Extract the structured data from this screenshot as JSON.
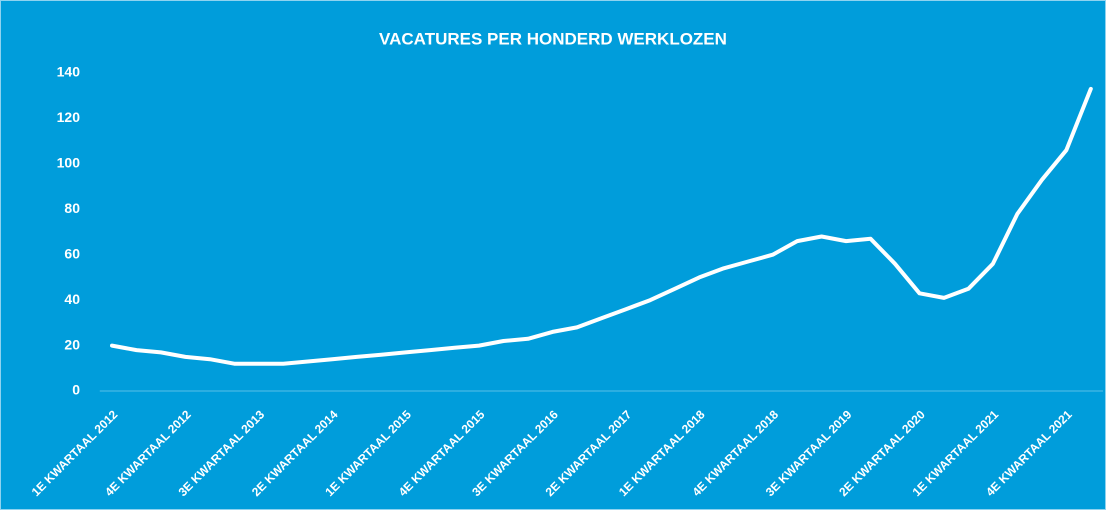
{
  "chart_data": {
    "type": "line",
    "title": "VACATURES PER HONDERD WERKLOZEN",
    "categories": [
      "1E KWARTAAL 2012",
      null,
      null,
      "4E KWARTAAL 2012",
      null,
      null,
      "3E KWARTAAL 2013",
      null,
      null,
      "2E KWARTAAL 2014",
      null,
      null,
      "1E KWARTAAL 2015",
      null,
      null,
      "4E KWARTAAL 2015",
      null,
      null,
      "3E KWARTAAL 2016",
      null,
      null,
      "2E KWARTAAL 2017",
      null,
      null,
      "1E KWARTAAL 2018",
      null,
      null,
      "4E KWARTAAL 2018",
      null,
      null,
      "3E KWARTAAL 2019",
      null,
      null,
      "2E KWARTAAL 2020",
      null,
      null,
      "1E KWARTAAL 2021",
      null,
      null,
      "4E KWARTAAL 2021",
      null
    ],
    "values": [
      20,
      18,
      17,
      15,
      14,
      12,
      12,
      12,
      13,
      14,
      15,
      16,
      17,
      18,
      19,
      20,
      22,
      23,
      26,
      28,
      32,
      36,
      40,
      45,
      50,
      54,
      57,
      60,
      66,
      68,
      66,
      67,
      56,
      43,
      41,
      45,
      56,
      78,
      93,
      106,
      133
    ],
    "color": "#ffffff",
    "background": "#009ddb",
    "ylim": [
      0,
      140
    ],
    "yticks": [
      0,
      20,
      40,
      60,
      80,
      100,
      120,
      140
    ],
    "grid": false
  }
}
